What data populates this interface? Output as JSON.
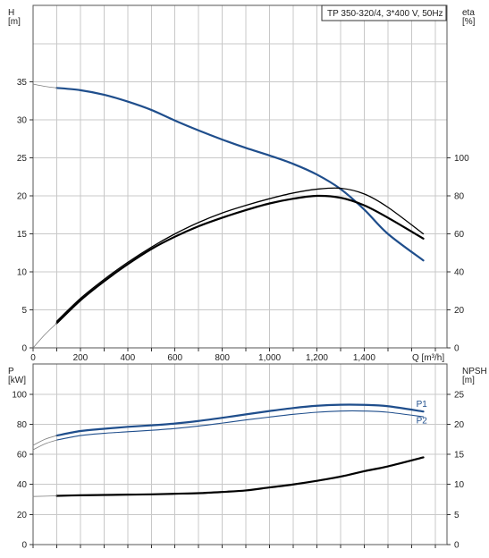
{
  "colors": {
    "blue": "#1f4e8c",
    "black": "#000000",
    "grey": "#808080"
  },
  "chart_data": [
    {
      "type": "line",
      "title": "TP 350-320/4, 3*400 V, 50Hz",
      "xlabel": "Q [m³/h]",
      "ylabel_left": [
        "H",
        "[m]"
      ],
      "ylabel_right": [
        "eta",
        "[%]"
      ],
      "xlim": [
        0,
        1750
      ],
      "ylim_left": [
        0,
        40
      ],
      "ylim_right": [
        0,
        160
      ],
      "xticks": [
        0,
        200,
        400,
        600,
        800,
        1000,
        1200,
        1400
      ],
      "xtick_labels": [
        "0",
        "200",
        "400",
        "600",
        "800",
        "1,000",
        "1,200",
        "1,400"
      ],
      "yticks_left": [
        0,
        5,
        10,
        15,
        20,
        25,
        30,
        35
      ],
      "yticks_right": [
        0,
        20,
        40,
        60,
        80,
        100
      ],
      "grid": true,
      "series": [
        {
          "axis": "left",
          "color": "#1f4e8c",
          "width": 2.2,
          "x": [
            100,
            200,
            300,
            400,
            500,
            600,
            700,
            800,
            900,
            1000,
            1100,
            1200,
            1300,
            1400,
            1500,
            1650
          ],
          "y": [
            34.2,
            33.9,
            33.3,
            32.4,
            31.3,
            29.9,
            28.6,
            27.4,
            26.3,
            25.3,
            24.2,
            22.8,
            20.9,
            18.2,
            15.0,
            11.5
          ]
        },
        {
          "axis": "left",
          "color": "#808080",
          "width": 0.8,
          "x": [
            0,
            50,
            100
          ],
          "y": [
            34.7,
            34.4,
            34.2
          ]
        },
        {
          "axis": "right",
          "color": "#000000",
          "width": 1.3,
          "x": [
            100,
            200,
            300,
            400,
            500,
            600,
            700,
            800,
            900,
            1000,
            1100,
            1200,
            1300,
            1400,
            1500,
            1650
          ],
          "y": [
            14,
            26,
            36,
            45,
            53,
            60,
            66,
            71,
            75,
            78.5,
            81.5,
            83.5,
            84,
            81,
            74,
            60
          ]
        },
        {
          "axis": "right",
          "color": "#000000",
          "width": 2.2,
          "x": [
            100,
            200,
            300,
            400,
            500,
            600,
            700,
            800,
            900,
            1000,
            1100,
            1200,
            1300,
            1400,
            1500,
            1650
          ],
          "y": [
            13,
            25,
            35,
            44,
            52,
            58.5,
            64,
            68.5,
            72.5,
            76,
            78.5,
            80,
            79,
            75,
            68.5,
            57.5
          ]
        },
        {
          "axis": "right",
          "color": "#808080",
          "width": 0.8,
          "x": [
            0,
            50,
            100
          ],
          "y": [
            0,
            7,
            13
          ]
        }
      ]
    },
    {
      "type": "line",
      "xlim": [
        0,
        1750
      ],
      "ylabel_left": [
        "P",
        "[kW]"
      ],
      "ylabel_right": [
        "NPSH",
        "[m]"
      ],
      "ylim_left": [
        0,
        110
      ],
      "ylim_right": [
        0,
        27.5
      ],
      "yticks_left": [
        0,
        20,
        40,
        60,
        80,
        100
      ],
      "yticks_right": [
        0,
        5,
        10,
        15,
        20,
        25
      ],
      "grid": true,
      "labels": [
        {
          "text": "P1",
          "x": 1620,
          "y": 91.5,
          "color": "#1f4e8c"
        },
        {
          "text": "P2",
          "x": 1620,
          "y": 80.5,
          "color": "#1f4e8c"
        }
      ],
      "series": [
        {
          "name": "P1",
          "axis": "left",
          "color": "#1f4e8c",
          "width": 2.2,
          "x": [
            100,
            200,
            300,
            400,
            500,
            600,
            700,
            800,
            900,
            1000,
            1100,
            1200,
            1300,
            1400,
            1500,
            1650
          ],
          "y": [
            72.5,
            75.5,
            77,
            78.3,
            79.3,
            80.5,
            82.2,
            84.3,
            86.6,
            88.8,
            90.8,
            92.3,
            93.0,
            92.9,
            92.0,
            88.5
          ]
        },
        {
          "name": "P2",
          "axis": "left",
          "color": "#1f4e8c",
          "width": 1.1,
          "x": [
            100,
            200,
            300,
            400,
            500,
            600,
            700,
            800,
            900,
            1000,
            1100,
            1200,
            1300,
            1400,
            1500,
            1650
          ],
          "y": [
            69.5,
            72.5,
            74,
            75,
            76,
            77.2,
            78.8,
            80.8,
            82.9,
            84.8,
            86.6,
            88.0,
            88.8,
            88.8,
            88.0,
            85.0
          ]
        },
        {
          "axis": "left",
          "color": "#808080",
          "width": 0.8,
          "x": [
            0,
            50,
            100
          ],
          "y": [
            66,
            70,
            72.5
          ]
        },
        {
          "axis": "left",
          "color": "#808080",
          "width": 0.8,
          "x": [
            0,
            50,
            100
          ],
          "y": [
            63,
            67,
            69.5
          ]
        },
        {
          "axis": "right",
          "color": "#000000",
          "width": 2.2,
          "x": [
            100,
            200,
            300,
            400,
            500,
            600,
            700,
            800,
            900,
            1000,
            1100,
            1200,
            1300,
            1400,
            1500,
            1650
          ],
          "y": [
            8.1,
            8.2,
            8.25,
            8.3,
            8.35,
            8.45,
            8.55,
            8.75,
            9.0,
            9.5,
            10.0,
            10.6,
            11.3,
            12.2,
            13.0,
            14.5
          ]
        },
        {
          "axis": "right",
          "color": "#808080",
          "width": 0.8,
          "x": [
            0,
            100
          ],
          "y": [
            8.0,
            8.1
          ]
        }
      ]
    }
  ]
}
